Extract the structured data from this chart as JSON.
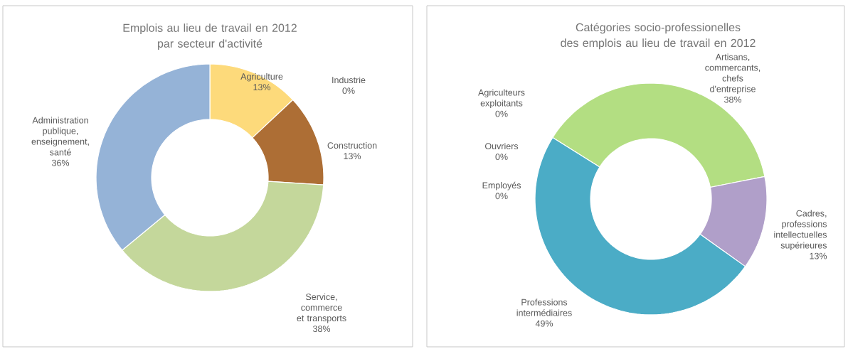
{
  "chart_data": [
    {
      "type": "donut",
      "title": "Emplois au lieu de travail en 2012",
      "subtitle": "par secteur d'activité",
      "categories": [
        "Agriculture",
        "Industrie",
        "Construction",
        "Service, commerce et transports",
        "Administration publique, enseignement, santé"
      ],
      "values": [
        13,
        0,
        13,
        38,
        36
      ],
      "value_labels": [
        "13%",
        "0%",
        "13%",
        "38%",
        "36%"
      ],
      "colors": [
        "#fdda7b",
        "#a5a5a5",
        "#ad6e35",
        "#c4d79b",
        "#95b3d7"
      ]
    },
    {
      "type": "donut",
      "title": "Catégories socio-professionelles",
      "subtitle": "des emplois au lieu de travail en 2012",
      "categories": [
        "Agriculteurs exploitants",
        "Artisans, commercants, chefs d'entreprise",
        "Cadres, professions intellectuelles supérieures",
        "Professions intermédiaires",
        "Employés",
        "Ouvriers"
      ],
      "values": [
        0,
        38,
        13,
        49,
        0,
        0
      ],
      "value_labels": [
        "0%",
        "38%",
        "13%",
        "49%",
        "0%",
        "0%"
      ],
      "colors": [
        "#7f7f7f",
        "#b3de82",
        "#b09fc9",
        "#4bacc6",
        "#f79646",
        "#c0504d"
      ]
    }
  ]
}
